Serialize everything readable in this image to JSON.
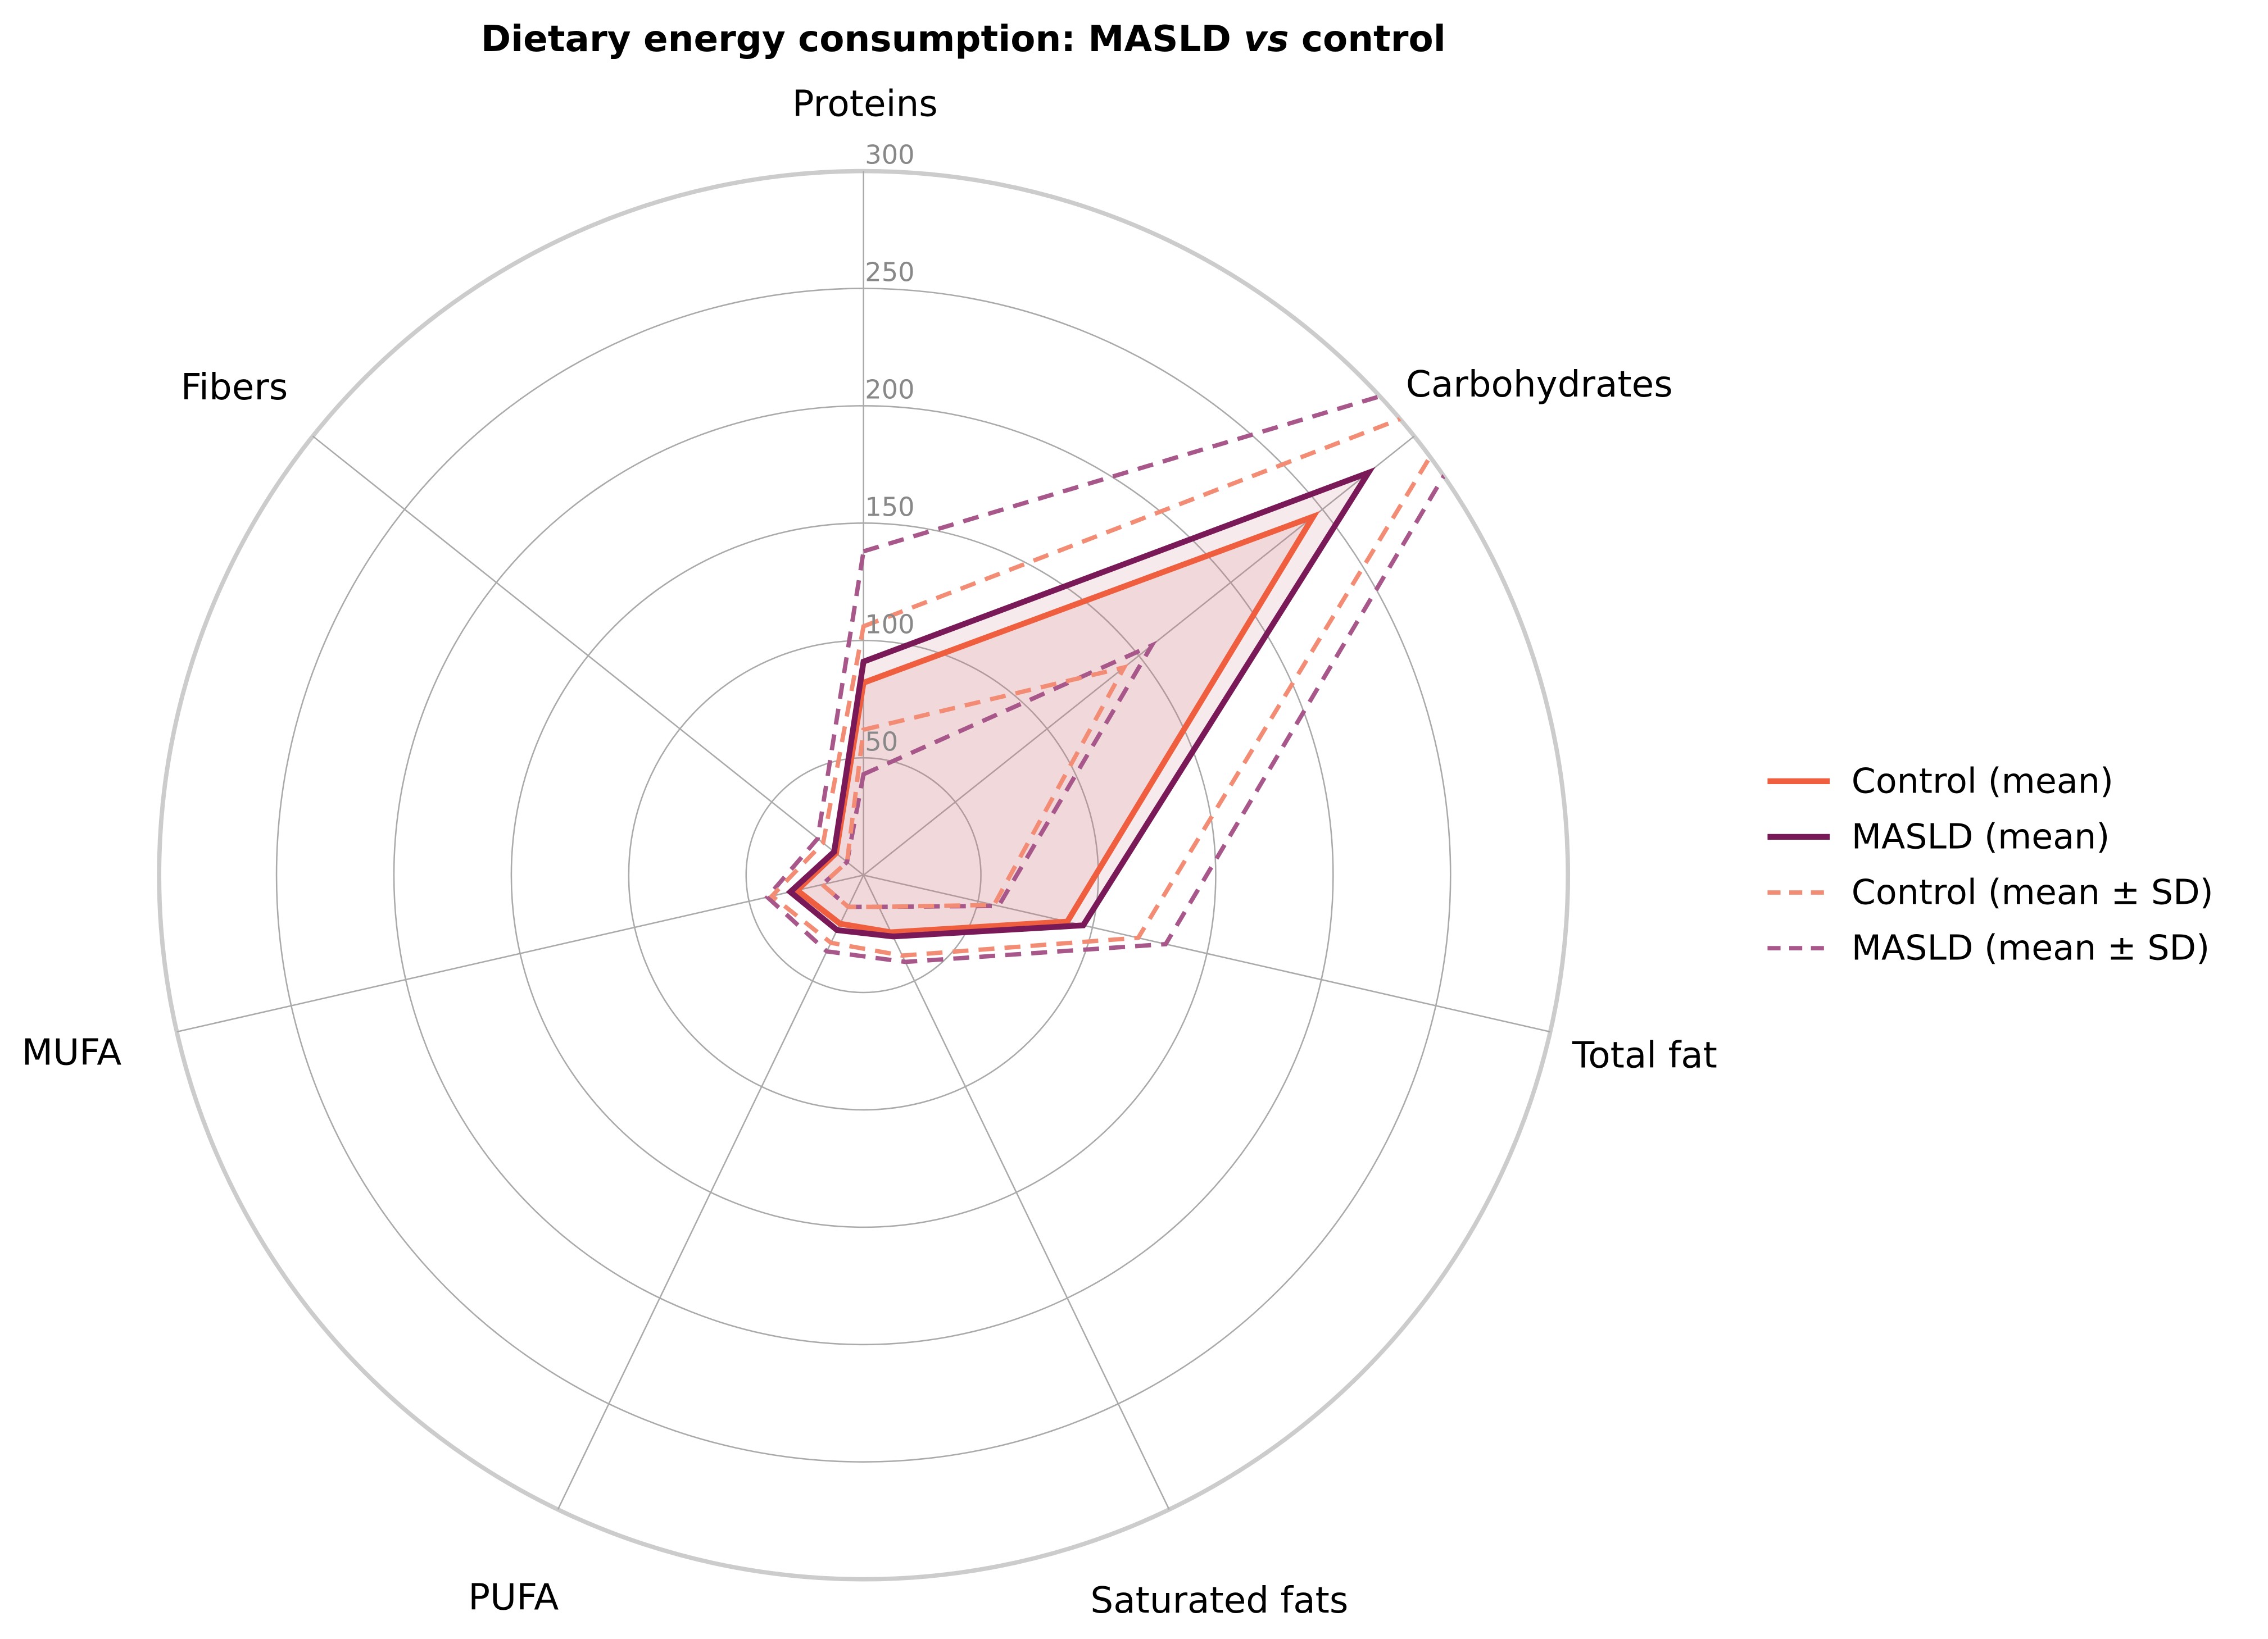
{
  "chart_data": {
    "type": "radar",
    "title_prefix": "Dietary energy consumption: MASLD ",
    "title_italic": "vs",
    "title_suffix": " control",
    "categories": [
      "Proteins",
      "Carbohydrates",
      "Total fat",
      "Saturated fats",
      "PUFA",
      "MUFA",
      "Fibers"
    ],
    "radial_ticks": [
      50,
      100,
      150,
      200,
      250,
      300
    ],
    "radial_range": [
      0,
      300
    ],
    "grid": true,
    "legend_position": "right",
    "series": [
      {
        "name": "Control (mean)",
        "style": "solid",
        "color": "#ee5e3f",
        "values": [
          82,
          245,
          89,
          27,
          23,
          29,
          15
        ]
      },
      {
        "name": "MASLD (mean)",
        "style": "solid",
        "color": "#7a1957",
        "values": [
          91,
          275,
          96,
          29,
          26,
          32,
          16
        ]
      },
      {
        "name": "Control (mean ± SD)",
        "style": "dashed",
        "color": "#f38c74",
        "upper": [
          106,
          330,
          120,
          38,
          32,
          40,
          22
        ],
        "lower": [
          62,
          142,
          57,
          15,
          15,
          18,
          9
        ]
      },
      {
        "name": "MASLD (mean ± SD)",
        "style": "dashed",
        "color": "#a8578a",
        "upper": [
          138,
          355,
          132,
          41,
          36,
          42,
          25
        ],
        "lower": [
          43,
          157,
          59,
          15,
          15,
          18,
          9
        ]
      }
    ],
    "fill_color": "#c9707f"
  }
}
